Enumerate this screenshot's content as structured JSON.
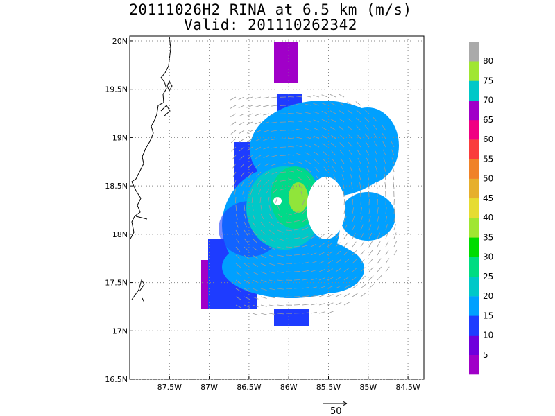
{
  "title_line1": "20111026H2 RINA at 6.5 km (m/s)",
  "title_line2": "Valid: 201110262342",
  "map": {
    "lon_range": [
      -88.0,
      -84.3
    ],
    "lat_range": [
      16.5,
      20.05
    ],
    "x_ticks": [
      {
        "value": -87.5,
        "label": "87.5W"
      },
      {
        "value": -87.0,
        "label": "87W"
      },
      {
        "value": -86.5,
        "label": "86.5W"
      },
      {
        "value": -86.0,
        "label": "86W"
      },
      {
        "value": -85.5,
        "label": "85.5W"
      },
      {
        "value": -85.0,
        "label": "85W"
      },
      {
        "value": -84.5,
        "label": "84.5W"
      }
    ],
    "y_ticks": [
      {
        "value": 16.5,
        "label": "16.5N"
      },
      {
        "value": 17.0,
        "label": "17N"
      },
      {
        "value": 17.5,
        "label": "17.5N"
      },
      {
        "value": 18.0,
        "label": "18N"
      },
      {
        "value": 18.5,
        "label": "18.5N"
      },
      {
        "value": 19.0,
        "label": "19N"
      },
      {
        "value": 19.5,
        "label": "19.5N"
      },
      {
        "value": 20.0,
        "label": "20N"
      }
    ],
    "grid": "dotted",
    "storm_center": {
      "lon": -86.0,
      "lat": 18.35
    }
  },
  "colorbar": {
    "labels": [
      "5",
      "10",
      "15",
      "20",
      "25",
      "30",
      "35",
      "40",
      "45",
      "50",
      "55",
      "60",
      "65",
      "70",
      "75",
      "80"
    ],
    "colors": [
      "#a000c8",
      "#6e00dc",
      "#1e3cff",
      "#00a0ff",
      "#00c8c8",
      "#00dc82",
      "#00dc00",
      "#a0e632",
      "#e6dc32",
      "#e6af2d",
      "#f08228",
      "#fa3c3c",
      "#f00082",
      "#a000c8",
      "#00c8c8",
      "#a0e632",
      "#aaaaaa"
    ]
  },
  "reference_vector": {
    "label": "50"
  }
}
